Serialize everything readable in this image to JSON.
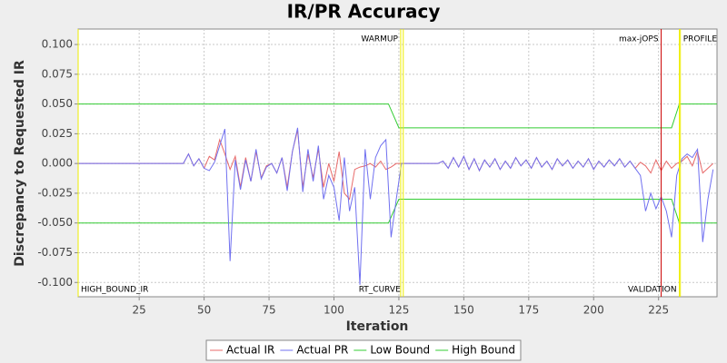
{
  "chart_data": {
    "type": "line",
    "title": "IR/PR Accuracy",
    "x_label": "Iteration",
    "y_label": "Discrepancy to Requested IR",
    "xlim": [
      1.5,
      247.5
    ],
    "ylim": [
      -0.112,
      0.113
    ],
    "xticks": [
      25,
      50,
      75,
      100,
      125,
      150,
      175,
      200,
      225
    ],
    "yticks": [
      {
        "value": 0.1,
        "label": "0.100"
      },
      {
        "value": 0.075,
        "label": "0.075"
      },
      {
        "value": 0.05,
        "label": "0.050"
      },
      {
        "value": 0.025,
        "label": "0.025"
      },
      {
        "value": 0,
        "label": "0.000"
      },
      {
        "value": -0.025,
        "label": "-0.025"
      },
      {
        "value": -0.05,
        "label": "-0.050"
      },
      {
        "value": -0.075,
        "label": "-0.075"
      },
      {
        "value": -0.1,
        "label": "-0.100"
      }
    ],
    "grid": true,
    "legend": "bottom",
    "series": [
      {
        "name": "Actual IR",
        "color": "#e86a6a",
        "x": [
          1,
          42,
          44,
          46,
          48,
          50,
          52,
          54,
          56,
          58,
          60,
          62,
          64,
          66,
          68,
          70,
          72,
          74,
          76,
          78,
          80,
          82,
          84,
          86,
          88,
          90,
          92,
          94,
          96,
          98,
          100,
          102,
          104,
          106,
          108,
          110,
          112,
          114,
          116,
          118,
          120,
          122,
          124,
          126,
          128,
          130,
          132,
          134,
          136,
          138,
          140,
          142,
          144,
          146,
          148,
          150,
          152,
          154,
          156,
          158,
          160,
          162,
          164,
          166,
          168,
          170,
          172,
          174,
          176,
          178,
          180,
          182,
          184,
          186,
          188,
          190,
          192,
          194,
          196,
          198,
          200,
          202,
          204,
          206,
          208,
          210,
          212,
          214,
          216,
          218,
          220,
          222,
          224,
          226,
          228,
          230,
          232,
          234,
          236,
          238,
          240,
          242,
          244,
          246
        ],
        "values": [
          0,
          0,
          0.008,
          -0.002,
          0.004,
          -0.004,
          0.006,
          0.003,
          0.02,
          0.008,
          -0.005,
          0.006,
          -0.02,
          0.005,
          -0.015,
          0.01,
          -0.012,
          -0.002,
          0,
          -0.008,
          0.005,
          -0.02,
          0.01,
          0.028,
          -0.02,
          0.008,
          -0.012,
          0.012,
          -0.02,
          0,
          -0.015,
          0.01,
          -0.025,
          -0.03,
          -0.005,
          -0.003,
          -0.002,
          0,
          -0.003,
          0.002,
          -0.005,
          -0.003,
          0,
          0,
          0,
          0,
          0,
          0,
          0,
          0,
          0,
          0.002,
          -0.004,
          0.005,
          -0.003,
          0.006,
          -0.005,
          0.004,
          -0.006,
          0.003,
          -0.003,
          0.004,
          -0.005,
          0.002,
          -0.004,
          0.005,
          -0.002,
          0.003,
          -0.004,
          0.005,
          -0.003,
          0.002,
          -0.005,
          0.004,
          -0.002,
          0.003,
          -0.004,
          0.002,
          -0.003,
          0.004,
          -0.005,
          0.002,
          -0.003,
          0.003,
          -0.002,
          0.004,
          -0.003,
          0.002,
          -0.004,
          0.001,
          -0.002,
          -0.008,
          0.003,
          -0.006,
          0.002,
          -0.004,
          0,
          0.002,
          0.006,
          -0.002,
          0.01,
          -0.008,
          -0.004,
          0
        ]
      },
      {
        "name": "Actual PR",
        "color": "#7070f0",
        "x": [
          1,
          42,
          44,
          46,
          48,
          50,
          52,
          54,
          56,
          58,
          60,
          62,
          64,
          66,
          68,
          70,
          72,
          74,
          76,
          78,
          80,
          82,
          84,
          86,
          88,
          90,
          92,
          94,
          96,
          98,
          100,
          102,
          104,
          106,
          108,
          110,
          112,
          114,
          116,
          118,
          120,
          122,
          124,
          126,
          128,
          130,
          132,
          134,
          136,
          138,
          140,
          142,
          144,
          146,
          148,
          150,
          152,
          154,
          156,
          158,
          160,
          162,
          164,
          166,
          168,
          170,
          172,
          174,
          176,
          178,
          180,
          182,
          184,
          186,
          188,
          190,
          192,
          194,
          196,
          198,
          200,
          202,
          204,
          206,
          208,
          210,
          212,
          214,
          216,
          218,
          220,
          222,
          224,
          226,
          228,
          230,
          232,
          234,
          236,
          238,
          240,
          242,
          244,
          246
        ],
        "values": [
          0,
          0,
          0.008,
          -0.002,
          0.004,
          -0.004,
          -0.006,
          0.001,
          0.015,
          0.029,
          -0.082,
          0.003,
          -0.022,
          0.003,
          -0.015,
          0.012,
          -0.013,
          -0.003,
          0,
          -0.008,
          0.005,
          -0.023,
          0.01,
          0.03,
          -0.024,
          0.012,
          -0.015,
          0.015,
          -0.03,
          -0.01,
          -0.02,
          -0.048,
          0.005,
          -0.04,
          -0.02,
          -0.102,
          0.012,
          -0.03,
          0.005,
          0.015,
          0.02,
          -0.062,
          -0.03,
          0,
          0,
          0,
          0,
          0,
          0,
          0,
          0,
          0.002,
          -0.004,
          0.005,
          -0.003,
          0.006,
          -0.005,
          0.004,
          -0.006,
          0.003,
          -0.003,
          0.004,
          -0.005,
          0.002,
          -0.004,
          0.005,
          -0.002,
          0.003,
          -0.004,
          0.005,
          -0.003,
          0.002,
          -0.005,
          0.004,
          -0.002,
          0.003,
          -0.004,
          0.002,
          -0.003,
          0.004,
          -0.005,
          0.002,
          -0.003,
          0.003,
          -0.002,
          0.004,
          -0.003,
          0.002,
          -0.004,
          -0.01,
          -0.04,
          -0.025,
          -0.038,
          -0.028,
          -0.04,
          -0.062,
          -0.01,
          0.004,
          0.008,
          0.005,
          0.012,
          -0.066,
          -0.03,
          -0.005
        ]
      },
      {
        "name": "Low Bound",
        "color": "#33cc33",
        "x": [
          1.5,
          121,
          125,
          230,
          233,
          247.5
        ],
        "values": [
          -0.05,
          -0.05,
          -0.03,
          -0.03,
          -0.05,
          -0.05
        ]
      },
      {
        "name": "High Bound",
        "color": "#33cc33",
        "x": [
          1.5,
          121,
          125,
          230,
          233,
          247.5
        ],
        "values": [
          0.05,
          0.05,
          0.03,
          0.03,
          0.05,
          0.05
        ]
      }
    ],
    "markers": [
      {
        "label": "HIGH_BOUND_IR",
        "x": 1.5,
        "color": "#eeee00",
        "label_position": "bottom-right"
      },
      {
        "label": "WARMUP",
        "x": 125.7,
        "color": "#eeee00",
        "label_position": "top-left"
      },
      {
        "label": "RT_CURVE",
        "x": 126.7,
        "color": "#eeee00",
        "label_position": "bottom-left"
      },
      {
        "label": "max-jOPS",
        "x": 226,
        "color": "#cc0000",
        "label_position": "top-left"
      },
      {
        "label": "VALIDATION",
        "x": 233,
        "color": "#eeee00",
        "label_position": "bottom-left"
      },
      {
        "label": "PROFILE",
        "x": 233.4,
        "color": "#eeee00",
        "label_position": "top-right"
      }
    ]
  }
}
